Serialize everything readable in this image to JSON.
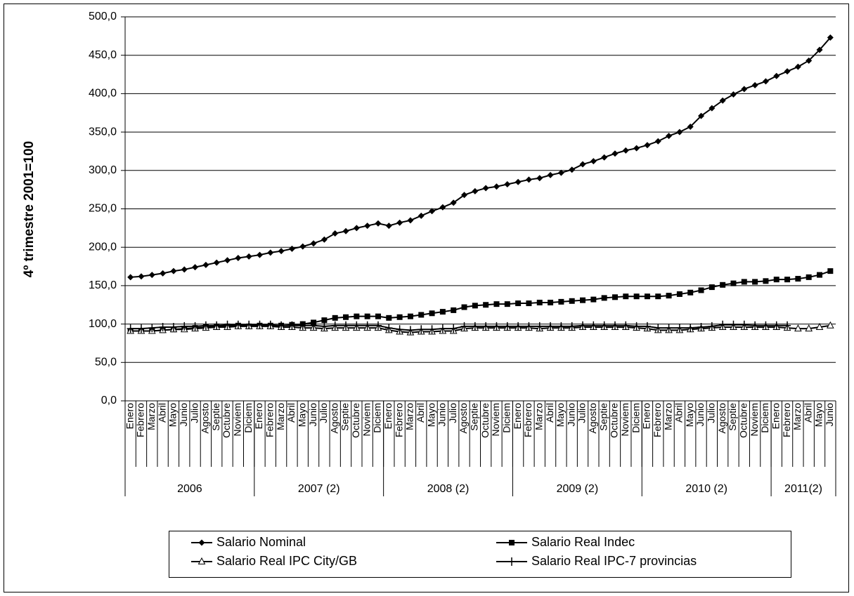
{
  "chart_data": {
    "type": "line",
    "y_label": "4º trimestre 2001=100",
    "categories": [
      "Enero",
      "Febrero",
      "Marzo",
      "Abril",
      "Mayo",
      "Junio",
      "Julio",
      "Agosto",
      "Septie",
      "Octubre",
      "Noviem",
      "Diciem",
      "Enero",
      "Febrero",
      "Marzo",
      "Abril",
      "Mayo",
      "Junio",
      "Julio",
      "Agosto",
      "Septie",
      "Octubre",
      "Noviem",
      "Diciem",
      "Enero",
      "Febrero",
      "Marzo",
      "Abril",
      "Mayo",
      "Junio",
      "Julio",
      "Agosto",
      "Septie",
      "Octubre",
      "Noviem",
      "Diciem",
      "Enero",
      "Febrero",
      "Marzo",
      "Abril",
      "Mayo",
      "Junio",
      "Julio",
      "Agosto",
      "Septie",
      "Octubre",
      "Noviem",
      "Diciem",
      "Enero",
      "Febrero",
      "Marzo",
      "Abril",
      "Mayo",
      "Junio",
      "Julio",
      "Agosto",
      "Septie",
      "Octubre",
      "Noviem",
      "Diciem",
      "Enero",
      "Febrero",
      "Marzo",
      "Abril",
      "Mayo",
      "Junio"
    ],
    "groups": [
      {
        "label": "2006",
        "size": 12
      },
      {
        "label": "2007 (2)",
        "size": 12
      },
      {
        "label": "2008 (2)",
        "size": 12
      },
      {
        "label": "2009 (2)",
        "size": 12
      },
      {
        "label": "2010 (2)",
        "size": 12
      },
      {
        "label": "2011(2)",
        "size": 6
      }
    ],
    "series": [
      {
        "name": "Salario Nominal",
        "color": "#000000",
        "marker": "diamond",
        "values": [
          161,
          162,
          164,
          166,
          169,
          171,
          174,
          177,
          180,
          183,
          186,
          188,
          190,
          193,
          195,
          198,
          201,
          205,
          210,
          218,
          221,
          225,
          228,
          231,
          228,
          232,
          235,
          241,
          247,
          252,
          258,
          268,
          273,
          277,
          279,
          282,
          285,
          288,
          290,
          294,
          297,
          301,
          308,
          312,
          317,
          322,
          326,
          329,
          333,
          338,
          345,
          350,
          357,
          371,
          381,
          391,
          399,
          406,
          411,
          416,
          423,
          429,
          435,
          443,
          457,
          473
        ]
      },
      {
        "name": "Salario Real Indec",
        "color": "#000000",
        "marker": "square",
        "values": [
          91,
          91,
          91,
          92,
          93,
          94,
          95,
          96,
          97,
          97,
          98,
          97,
          98,
          98,
          98,
          99,
          100,
          102,
          105,
          108,
          109,
          110,
          110,
          110,
          108,
          109,
          110,
          112,
          114,
          116,
          118,
          122,
          124,
          125,
          126,
          126,
          127,
          127,
          128,
          128,
          129,
          130,
          131,
          132,
          134,
          135,
          136,
          136,
          136,
          136,
          137,
          139,
          141,
          144,
          148,
          151,
          153,
          155,
          155,
          156,
          158,
          158,
          159,
          161,
          164,
          169
        ]
      },
      {
        "name": "Salario Real IPC City/GB",
        "color": "#000000",
        "marker": "triangle",
        "values": [
          91,
          91,
          91,
          92,
          93,
          93,
          94,
          95,
          96,
          96,
          97,
          97,
          97,
          97,
          96,
          96,
          95,
          95,
          94,
          95,
          95,
          95,
          95,
          95,
          92,
          90,
          89,
          90,
          90,
          91,
          91,
          94,
          95,
          95,
          95,
          95,
          95,
          95,
          94,
          95,
          95,
          95,
          96,
          96,
          96,
          96,
          96,
          95,
          94,
          92,
          92,
          92,
          93,
          94,
          95,
          96,
          96,
          96,
          96,
          96,
          96,
          95,
          94,
          94,
          96,
          98
        ]
      },
      {
        "name": "Salario Real IPC-7 provincias",
        "color": "#000000",
        "marker": "plus",
        "values": [
          94,
          94,
          95,
          96,
          96,
          97,
          97,
          98,
          98,
          99,
          99,
          99,
          99,
          99,
          98,
          98,
          98,
          98,
          97,
          98,
          98,
          98,
          98,
          98,
          95,
          93,
          92,
          93,
          93,
          94,
          94,
          97,
          97,
          97,
          97,
          97,
          97,
          97,
          97,
          97,
          97,
          97,
          98,
          98,
          98,
          98,
          98,
          97,
          97,
          95,
          95,
          95,
          95,
          96,
          97,
          99,
          99,
          99,
          98,
          98,
          98,
          98,
          null,
          null,
          null,
          null
        ]
      }
    ],
    "ylim": [
      0,
      500
    ],
    "yticks": [
      {
        "value": 0,
        "label": "0,0"
      },
      {
        "value": 50,
        "label": "50,0"
      },
      {
        "value": 100,
        "label": "100,0"
      },
      {
        "value": 150,
        "label": "150,0"
      },
      {
        "value": 200,
        "label": "200,0"
      },
      {
        "value": 250,
        "label": "250,0"
      },
      {
        "value": 300,
        "label": "300,0"
      },
      {
        "value": 350,
        "label": "350,0"
      },
      {
        "value": 400,
        "label": "400,0"
      },
      {
        "value": 450,
        "label": "450,0"
      },
      {
        "value": 500,
        "label": "500,0"
      }
    ],
    "grid": true
  }
}
